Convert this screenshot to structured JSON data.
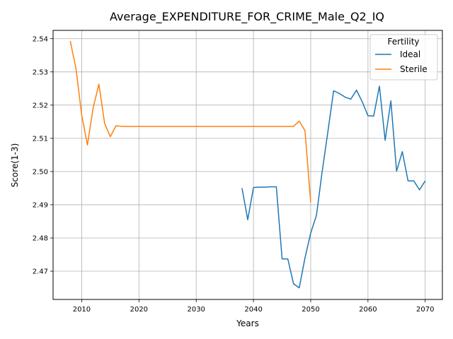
{
  "chart_data": {
    "type": "line",
    "title": "Average_EXPENDITURE_FOR_CRIME_Male_Q2_IQ",
    "xlabel": "Years",
    "ylabel": "Score(1-3)",
    "xlim": [
      2005,
      2073
    ],
    "ylim": [
      2.4615,
      2.5425
    ],
    "xticks": [
      2010,
      2020,
      2030,
      2040,
      2050,
      2060,
      2070
    ],
    "yticks": [
      2.47,
      2.48,
      2.49,
      2.5,
      2.51,
      2.52,
      2.53,
      2.54
    ],
    "ytick_labels": [
      "2.47",
      "2.48",
      "2.49",
      "2.50",
      "2.51",
      "2.52",
      "2.53",
      "2.54"
    ],
    "grid": true,
    "legend": {
      "title": "Fertility",
      "position": "top-right"
    },
    "series": [
      {
        "name": "Ideal",
        "color": "#1f77b4",
        "x": [
          2038,
          2039,
          2040,
          2041,
          2042,
          2043,
          2044,
          2045,
          2046,
          2047,
          2048,
          2049,
          2050,
          2051,
          2052,
          2053,
          2054,
          2055,
          2056,
          2057,
          2058,
          2059,
          2060,
          2061,
          2062,
          2063,
          2064,
          2065,
          2066,
          2067,
          2068,
          2069,
          2070
        ],
        "y": [
          2.495,
          2.4855,
          2.4952,
          2.4953,
          2.4953,
          2.4954,
          2.4954,
          2.4737,
          2.4737,
          2.4662,
          2.465,
          2.474,
          2.4815,
          2.4868,
          2.5,
          2.512,
          2.5243,
          2.5235,
          2.5224,
          2.5218,
          2.5245,
          2.521,
          2.5168,
          2.5167,
          2.5257,
          2.5094,
          2.5213,
          2.5001,
          2.506,
          2.4972,
          2.4972,
          2.4945,
          2.4972
        ]
      },
      {
        "name": "Sterile",
        "color": "#ff7f0e",
        "x": [
          2008,
          2009,
          2010,
          2011,
          2012,
          2013,
          2014,
          2015,
          2016,
          2017,
          2018,
          2019,
          2020,
          2021,
          2022,
          2023,
          2024,
          2025,
          2026,
          2027,
          2028,
          2029,
          2030,
          2031,
          2032,
          2033,
          2034,
          2035,
          2036,
          2037,
          2038,
          2039,
          2040,
          2041,
          2042,
          2043,
          2044,
          2045,
          2046,
          2047,
          2048,
          2049,
          2050
        ],
        "y": [
          2.5393,
          2.531,
          2.517,
          2.508,
          2.5192,
          2.5263,
          2.5145,
          2.5105,
          2.5138,
          2.5136,
          2.5136,
          2.5136,
          2.5136,
          2.5136,
          2.5136,
          2.5136,
          2.5136,
          2.5136,
          2.5136,
          2.5136,
          2.5136,
          2.5136,
          2.5136,
          2.5136,
          2.5136,
          2.5136,
          2.5136,
          2.5136,
          2.5136,
          2.5136,
          2.5136,
          2.5136,
          2.5136,
          2.5136,
          2.5136,
          2.5136,
          2.5136,
          2.5136,
          2.5136,
          2.5136,
          2.5152,
          2.5123,
          2.4907
        ]
      }
    ]
  }
}
